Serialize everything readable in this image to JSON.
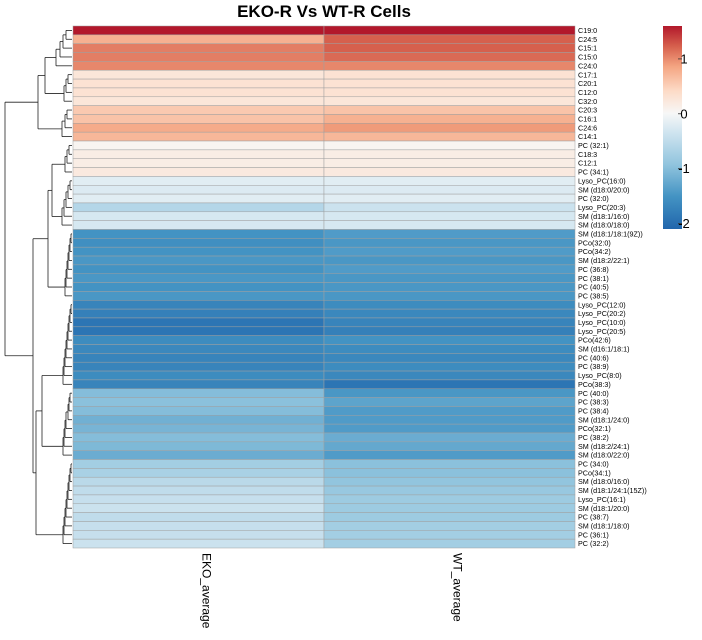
{
  "chart_data": {
    "type": "heatmap",
    "title": "EKO-R Vs WT-R Cells",
    "columns": [
      "EKO_average",
      "WT_average"
    ],
    "rows": [
      "C19:0",
      "C24:5",
      "C15:1",
      "C15:0",
      "C24:0",
      "C17:1",
      "C20:1",
      "C12:0",
      "C32:0",
      "C20:3",
      "C16:1",
      "C24:6",
      "C14:1",
      "PC (32:1)",
      "C18:3",
      "C12:1",
      "PC (34:1)",
      "Lyso_PC(16:0)",
      "SM (d18:0/20:0)",
      "PC (32:0)",
      "Lyso_PC(20:3)",
      "SM (d18:1/16:0)",
      "SM (d18:0/18:0)",
      "SM (d18:1/18:1(9Z))",
      "PCo(32:0)",
      "PCo(34:2)",
      "SM (d18:2/22:1)",
      "PC (36:8)",
      "PC (38:1)",
      "PC (40:5)",
      "PC (38:5)",
      "Lyso_PC(12:0)",
      "Lyso_PC(20:2)",
      "Lyso_PC(10:0)",
      "Lyso_PC(20:5)",
      "PCo(42:6)",
      "SM (d16:1/18:1)",
      "PC (40:6)",
      "PC (38:9)",
      "Lyso_PC(8:0)",
      "PCo(38:3)",
      "PC (40:0)",
      "PC (38:3)",
      "PC (38:4)",
      "SM (d18:1/24:0)",
      "PCo(32:1)",
      "PC (38:2)",
      "SM (d18:2/24:1)",
      "SM (d18:0/22:0)",
      "PC (34:0)",
      "PCo(34:1)",
      "SM (d18:0/16:0)",
      "SM (d18:1/24:1(15Z))",
      "Lyso_PC(16:1)",
      "SM (d18:1/20:0)",
      "PC (38:7)",
      "SM (d18:1/18:0)",
      "PC (36:1)",
      "PC (32:2)"
    ],
    "values": [
      [
        1.6,
        1.6
      ],
      [
        0.75,
        1.2
      ],
      [
        1.05,
        1.2
      ],
      [
        1.05,
        1.15
      ],
      [
        1.0,
        1.0
      ],
      [
        0.25,
        0.3
      ],
      [
        0.3,
        0.3
      ],
      [
        0.3,
        0.3
      ],
      [
        0.25,
        0.25
      ],
      [
        0.55,
        0.6
      ],
      [
        0.6,
        0.75
      ],
      [
        0.8,
        0.9
      ],
      [
        0.7,
        0.7
      ],
      [
        0.05,
        0.05
      ],
      [
        0.15,
        0.15
      ],
      [
        0.15,
        0.15
      ],
      [
        0.2,
        0.2
      ],
      [
        -0.2,
        -0.2
      ],
      [
        -0.25,
        -0.25
      ],
      [
        -0.2,
        -0.2
      ],
      [
        -0.6,
        -0.4
      ],
      [
        -0.3,
        -0.3
      ],
      [
        -0.3,
        -0.3
      ],
      [
        -1.5,
        -1.4
      ],
      [
        -1.55,
        -1.45
      ],
      [
        -1.5,
        -1.4
      ],
      [
        -1.45,
        -1.45
      ],
      [
        -1.5,
        -1.4
      ],
      [
        -1.45,
        -1.45
      ],
      [
        -1.5,
        -1.45
      ],
      [
        -1.45,
        -1.45
      ],
      [
        -1.7,
        -1.6
      ],
      [
        -1.75,
        -1.65
      ],
      [
        -1.9,
        -1.7
      ],
      [
        -1.9,
        -1.75
      ],
      [
        -1.6,
        -1.5
      ],
      [
        -1.65,
        -1.6
      ],
      [
        -1.7,
        -1.65
      ],
      [
        -1.7,
        -1.6
      ],
      [
        -1.6,
        -1.65
      ],
      [
        -1.7,
        -1.9
      ],
      [
        -1.0,
        -1.45
      ],
      [
        -0.95,
        -1.3
      ],
      [
        -1.0,
        -1.4
      ],
      [
        -1.15,
        -1.4
      ],
      [
        -1.1,
        -1.4
      ],
      [
        -1.0,
        -1.2
      ],
      [
        -1.05,
        -1.25
      ],
      [
        -1.2,
        -1.4
      ],
      [
        -0.75,
        -0.95
      ],
      [
        -0.7,
        -0.95
      ],
      [
        -0.55,
        -0.9
      ],
      [
        -0.5,
        -0.85
      ],
      [
        -0.45,
        -0.8
      ],
      [
        -0.4,
        -0.8
      ],
      [
        -0.5,
        -0.8
      ],
      [
        -0.45,
        -0.75
      ],
      [
        -0.45,
        -0.75
      ],
      [
        -0.4,
        -0.75
      ]
    ],
    "colorbar": {
      "ticks": [
        1,
        0,
        -1,
        -2
      ],
      "range": [
        -2.1,
        1.6
      ],
      "low_color": "#2166ac",
      "mid_color": "#f7f7f7",
      "high_color": "#b2182b"
    },
    "dendrogram": "rows-left"
  }
}
